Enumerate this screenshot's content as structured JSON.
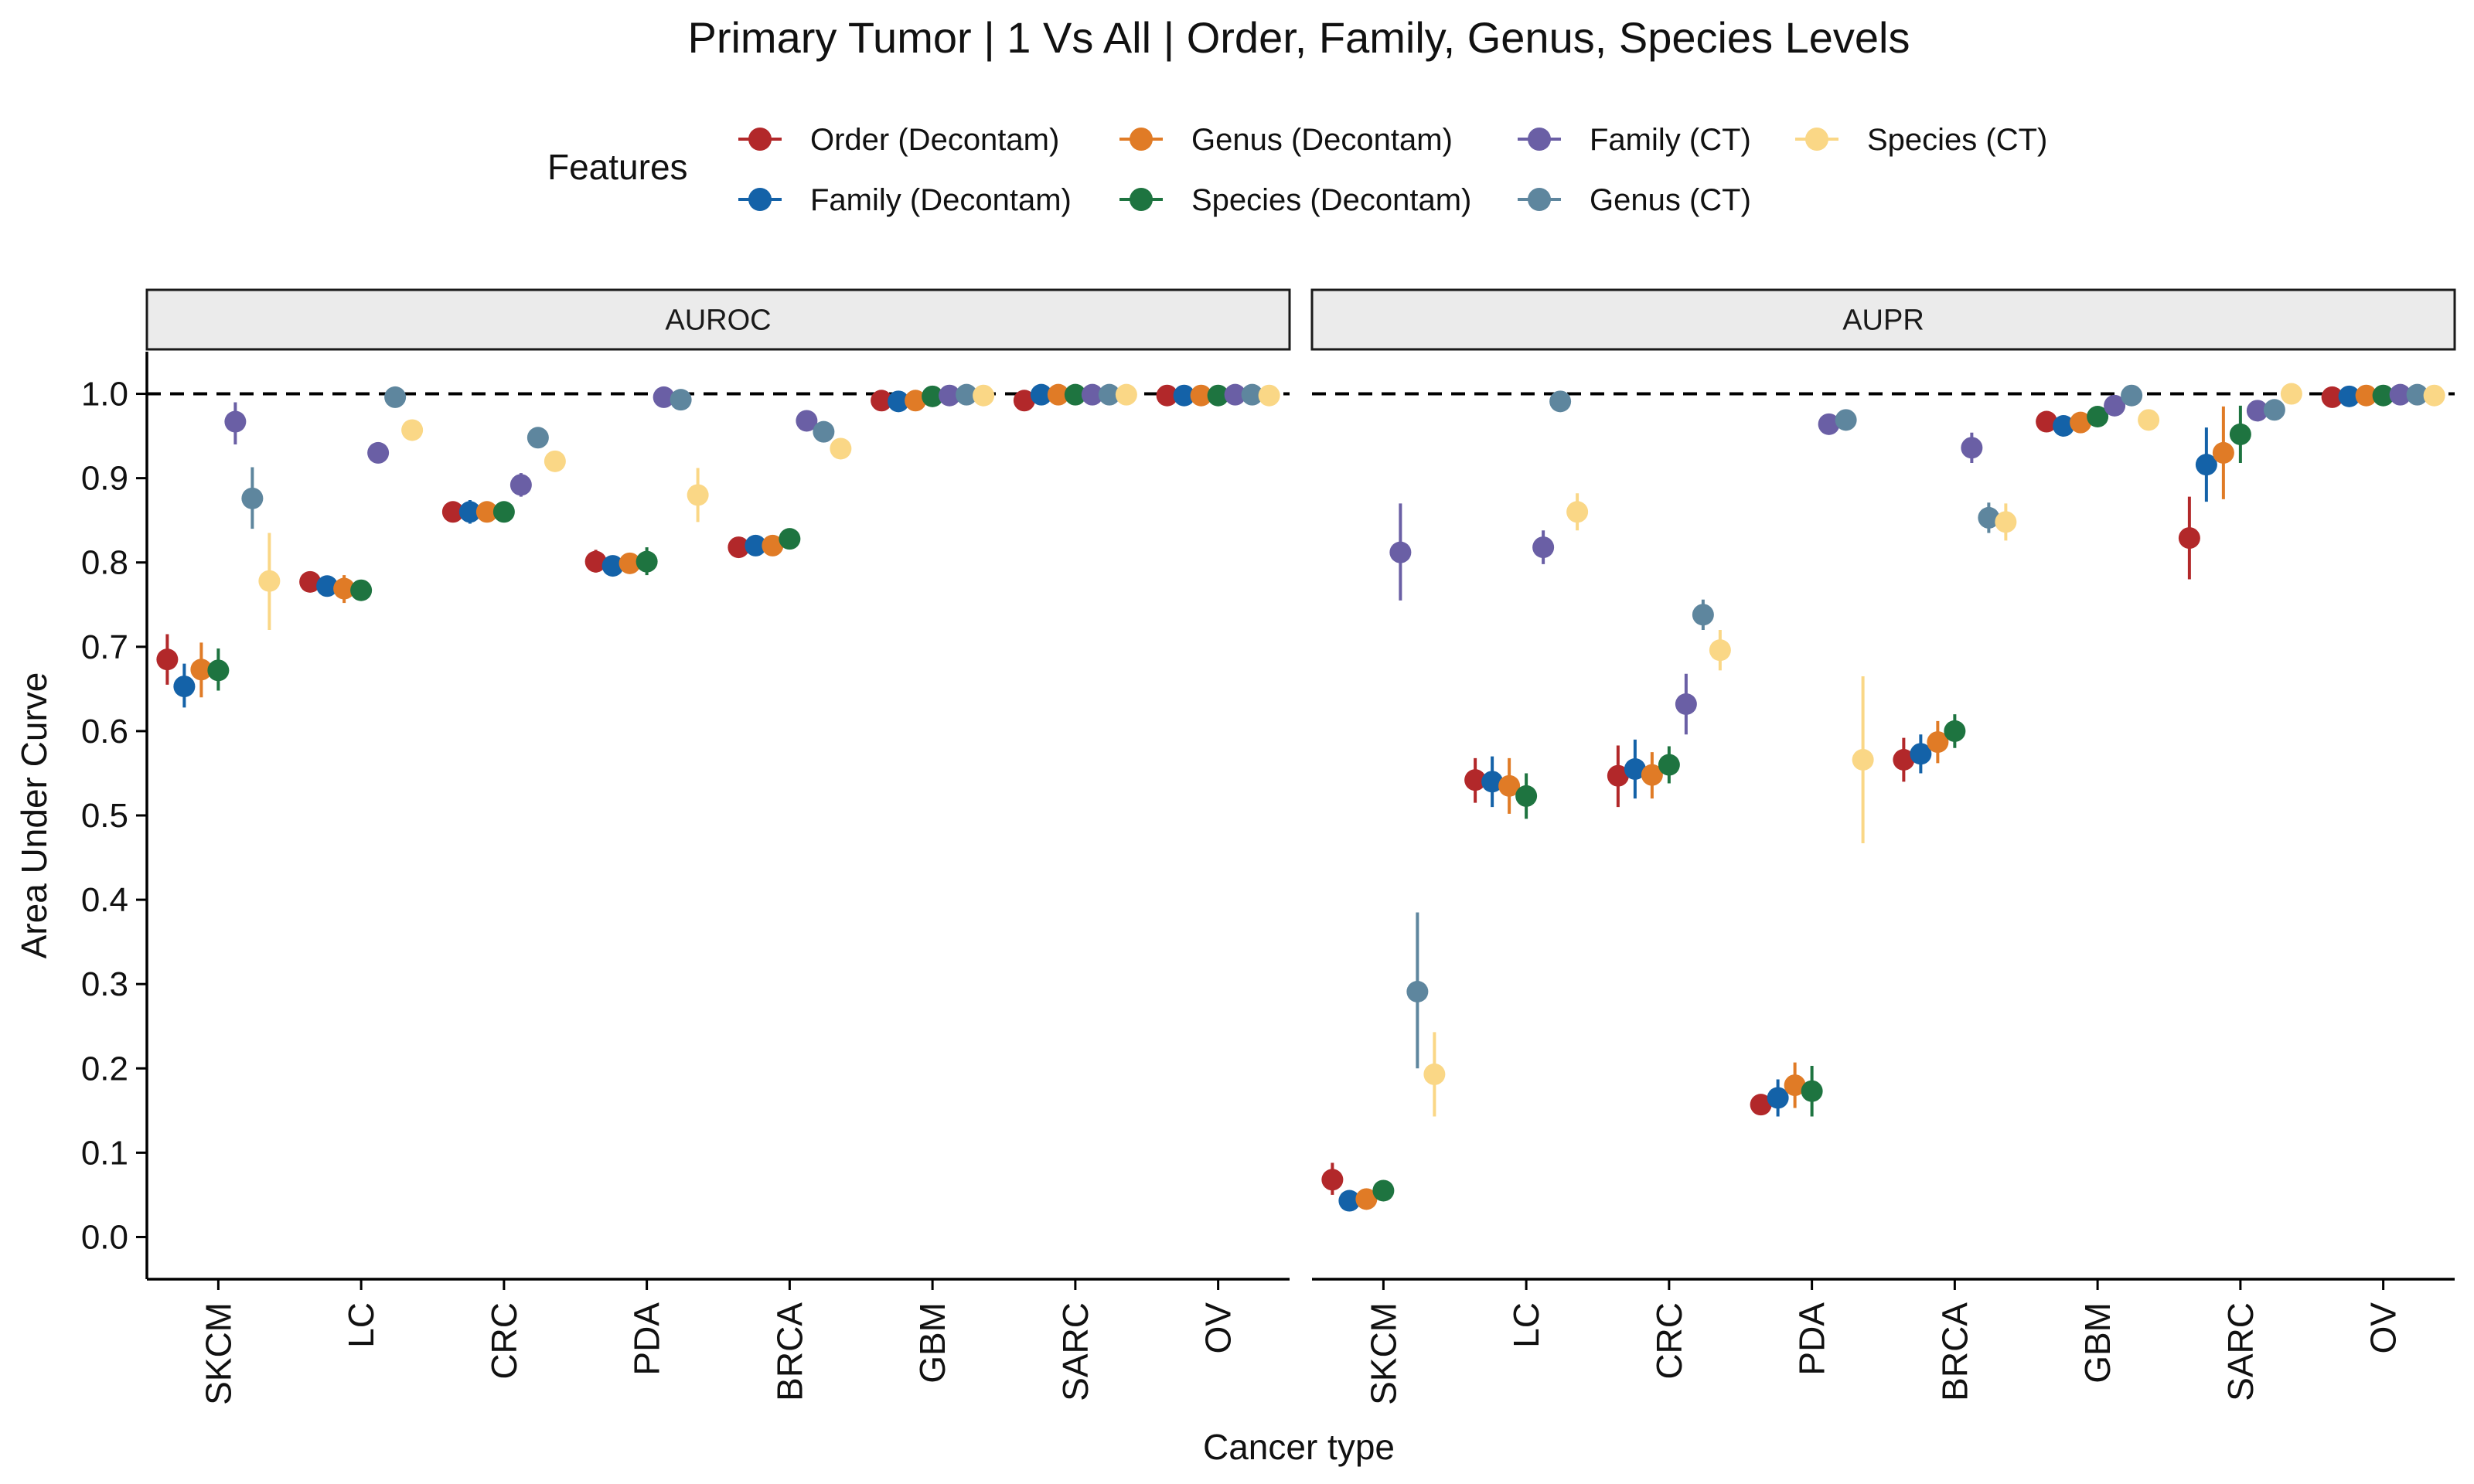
{
  "chart_data": {
    "type": "scatter",
    "title": "Primary Tumor | 1 Vs All | Order, Family, Genus, Species Levels",
    "xlabel": "Cancer type",
    "ylabel": "Area Under Curve",
    "ylim": [
      -0.05,
      1.05
    ],
    "y_ticks": [
      "0.0",
      "0.1",
      "0.2",
      "0.3",
      "0.4",
      "0.5",
      "0.6",
      "0.7",
      "0.8",
      "0.9",
      "1.0"
    ],
    "reference_line": 1.0,
    "grid": false,
    "legend": {
      "title": "Features",
      "position": "top"
    },
    "categories": [
      "SKCM",
      "LC",
      "CRC",
      "PDA",
      "BRCA",
      "GBM",
      "SARC",
      "OV"
    ],
    "series": [
      {
        "name": "Order (Decontam)",
        "color": "#B2282A"
      },
      {
        "name": "Family (Decontam)",
        "color": "#1462A8"
      },
      {
        "name": "Genus (Decontam)",
        "color": "#E07B26"
      },
      {
        "name": "Species (Decontam)",
        "color": "#1E7440"
      },
      {
        "name": "Family (CT)",
        "color": "#6A5FA5"
      },
      {
        "name": "Genus (CT)",
        "color": "#5E869E"
      },
      {
        "name": "Species (CT)",
        "color": "#FAD786"
      }
    ],
    "legend_order": [
      0,
      2,
      4,
      6,
      1,
      3,
      5
    ],
    "panels": [
      {
        "name": "AUROC",
        "values": {
          "SKCM": [
            [
              0.685,
              0.655,
              0.715
            ],
            [
              0.653,
              0.628,
              0.68
            ],
            [
              0.673,
              0.64,
              0.705
            ],
            [
              0.672,
              0.648,
              0.698
            ],
            [
              0.967,
              0.94,
              0.99
            ],
            [
              0.876,
              0.84,
              0.913
            ],
            [
              0.778,
              0.72,
              0.835
            ]
          ],
          "LC": [
            [
              0.777,
              0.767,
              0.786
            ],
            [
              0.772,
              0.76,
              0.784
            ],
            [
              0.769,
              0.752,
              0.785
            ],
            [
              0.767,
              0.758,
              0.776
            ],
            [
              0.93,
              0.92,
              0.94
            ],
            [
              0.996,
              0.992,
              1.0
            ],
            [
              0.957,
              0.948,
              0.966
            ]
          ],
          "CRC": [
            [
              0.86,
              0.85,
              0.87
            ],
            [
              0.86,
              0.846,
              0.874
            ],
            [
              0.86,
              0.85,
              0.87
            ],
            [
              0.86,
              0.851,
              0.869
            ],
            [
              0.892,
              0.878,
              0.906
            ],
            [
              0.948,
              0.938,
              0.958
            ],
            [
              0.92,
              0.91,
              0.93
            ]
          ],
          "PDA": [
            [
              0.801,
              0.788,
              0.815
            ],
            [
              0.796,
              0.788,
              0.804
            ],
            [
              0.799,
              0.787,
              0.811
            ],
            [
              0.801,
              0.785,
              0.818
            ],
            [
              0.996,
              0.992,
              1.0
            ],
            [
              0.993,
              0.988,
              0.998
            ],
            [
              0.88,
              0.848,
              0.912
            ]
          ],
          "BRCA": [
            [
              0.818,
              0.812,
              0.824
            ],
            [
              0.82,
              0.814,
              0.826
            ],
            [
              0.82,
              0.814,
              0.826
            ],
            [
              0.828,
              0.822,
              0.834
            ],
            [
              0.968,
              0.962,
              0.974
            ],
            [
              0.955,
              0.949,
              0.961
            ],
            [
              0.935,
              0.929,
              0.941
            ]
          ],
          "GBM": [
            [
              0.992,
              0.988,
              0.996
            ],
            [
              0.991,
              0.987,
              0.995
            ],
            [
              0.992,
              0.988,
              0.996
            ],
            [
              0.997,
              0.994,
              1.0
            ],
            [
              0.998,
              0.995,
              1.0
            ],
            [
              0.999,
              0.996,
              1.0
            ],
            [
              0.998,
              0.995,
              1.0
            ]
          ],
          "SARC": [
            [
              0.992,
              0.988,
              0.996
            ],
            [
              0.999,
              0.996,
              1.0
            ],
            [
              0.999,
              0.996,
              1.0
            ],
            [
              0.999,
              0.996,
              1.0
            ],
            [
              0.999,
              0.996,
              1.0
            ],
            [
              0.999,
              0.996,
              1.0
            ],
            [
              0.999,
              0.996,
              1.0
            ]
          ],
          "OV": [
            [
              0.998,
              0.995,
              1.0
            ],
            [
              0.998,
              0.995,
              1.0
            ],
            [
              0.998,
              0.995,
              1.0
            ],
            [
              0.998,
              0.995,
              1.0
            ],
            [
              0.999,
              0.996,
              1.0
            ],
            [
              0.999,
              0.996,
              1.0
            ],
            [
              0.998,
              0.995,
              1.0
            ]
          ]
        }
      },
      {
        "name": "AUPR",
        "values": {
          "SKCM": [
            [
              0.068,
              0.05,
              0.088
            ],
            [
              0.043,
              0.036,
              0.05
            ],
            [
              0.045,
              0.038,
              0.052
            ],
            [
              0.055,
              0.048,
              0.062
            ],
            [
              0.812,
              0.755,
              0.87
            ],
            [
              0.291,
              0.2,
              0.385
            ],
            [
              0.193,
              0.143,
              0.243
            ]
          ],
          "LC": [
            [
              0.542,
              0.515,
              0.568
            ],
            [
              0.54,
              0.51,
              0.57
            ],
            [
              0.535,
              0.502,
              0.568
            ],
            [
              0.523,
              0.496,
              0.55
            ],
            [
              0.818,
              0.798,
              0.838
            ],
            [
              0.991,
              0.985,
              0.997
            ],
            [
              0.86,
              0.838,
              0.882
            ]
          ],
          "CRC": [
            [
              0.547,
              0.51,
              0.583
            ],
            [
              0.555,
              0.52,
              0.59
            ],
            [
              0.548,
              0.52,
              0.575
            ],
            [
              0.56,
              0.538,
              0.582
            ],
            [
              0.632,
              0.596,
              0.668
            ],
            [
              0.738,
              0.72,
              0.756
            ],
            [
              0.696,
              0.672,
              0.72
            ]
          ],
          "PDA": [
            [
              0.157,
              0.145,
              0.169
            ],
            [
              0.165,
              0.143,
              0.187
            ],
            [
              0.18,
              0.153,
              0.207
            ],
            [
              0.173,
              0.143,
              0.203
            ],
            [
              0.964,
              0.952,
              0.976
            ],
            [
              0.969,
              0.96,
              0.978
            ],
            [
              0.566,
              0.467,
              0.665
            ]
          ],
          "BRCA": [
            [
              0.566,
              0.54,
              0.592
            ],
            [
              0.573,
              0.55,
              0.596
            ],
            [
              0.587,
              0.562,
              0.612
            ],
            [
              0.6,
              0.58,
              0.62
            ],
            [
              0.936,
              0.918,
              0.954
            ],
            [
              0.853,
              0.835,
              0.871
            ],
            [
              0.848,
              0.826,
              0.87
            ]
          ],
          "GBM": [
            [
              0.967,
              0.961,
              0.973
            ],
            [
              0.962,
              0.956,
              0.968
            ],
            [
              0.966,
              0.96,
              0.972
            ],
            [
              0.973,
              0.967,
              0.979
            ],
            [
              0.986,
              0.98,
              0.992
            ],
            [
              0.998,
              0.994,
              1.0
            ],
            [
              0.969,
              0.963,
              0.975
            ]
          ],
          "SARC": [
            [
              0.829,
              0.78,
              0.878
            ],
            [
              0.916,
              0.872,
              0.96
            ],
            [
              0.93,
              0.875,
              0.985
            ],
            [
              0.952,
              0.918,
              0.986
            ],
            [
              0.98,
              0.974,
              0.986
            ],
            [
              0.981,
              0.975,
              0.987
            ],
            [
              1.0,
              0.996,
              1.0
            ]
          ],
          "OV": [
            [
              0.996,
              0.992,
              1.0
            ],
            [
              0.997,
              0.993,
              1.0
            ],
            [
              0.998,
              0.994,
              1.0
            ],
            [
              0.998,
              0.994,
              1.0
            ],
            [
              0.999,
              0.996,
              1.0
            ],
            [
              0.999,
              0.996,
              1.0
            ],
            [
              0.998,
              0.994,
              1.0
            ]
          ]
        }
      }
    ]
  }
}
